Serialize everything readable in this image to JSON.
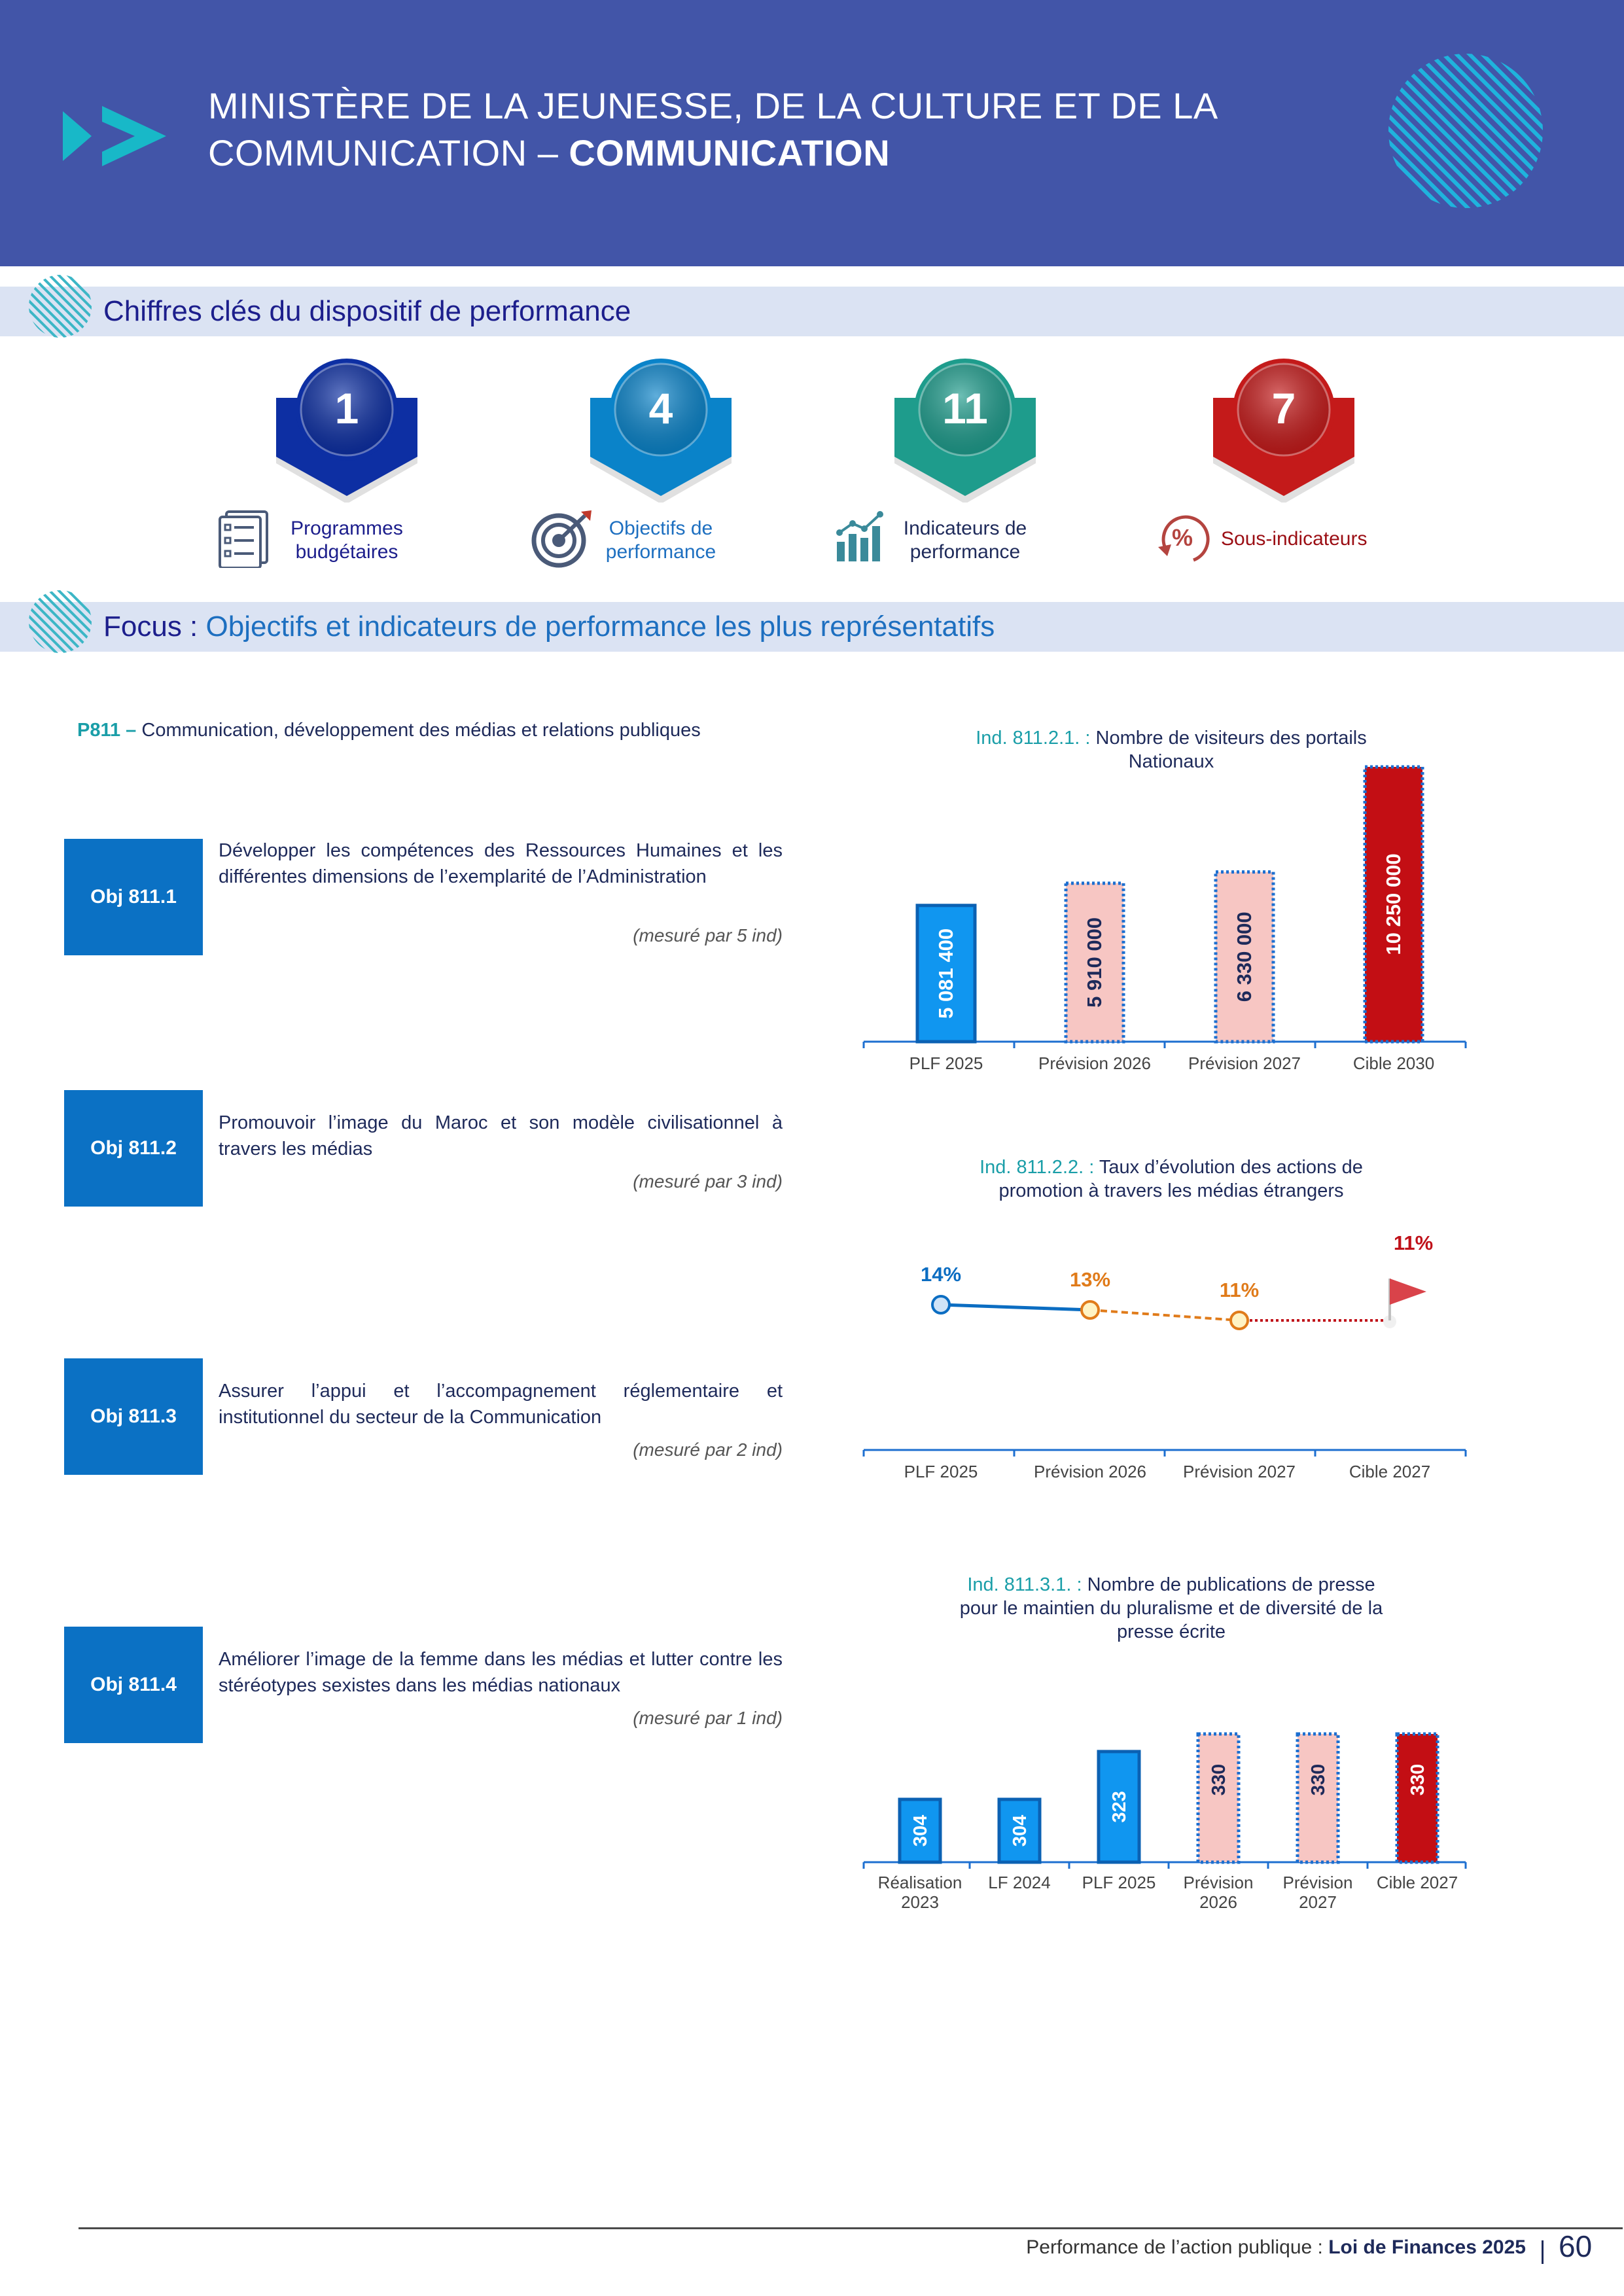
{
  "header": {
    "title_line1": "MINISTÈRE DE LA JEUNESSE, DE LA CULTURE ET DE LA",
    "title_line2_light": "COMMUNICATION – ",
    "title_line2_bold": "COMMUNICATION"
  },
  "section1": {
    "title": "Chiffres clés du dispositif de performance"
  },
  "key_figures": [
    {
      "value": "1",
      "label_line1": "Programmes",
      "label_line2": "budgétaires",
      "color": "#0d2fa3",
      "icon": "documents-icon"
    },
    {
      "value": "4",
      "label_line1": "Objectifs de",
      "label_line2": "performance",
      "color": "#0a83c9",
      "icon": "target-icon"
    },
    {
      "value": "11",
      "label_line1": "Indicateurs de",
      "label_line2": "performance",
      "color": "#1e9c8c",
      "icon": "bar-chart-icon"
    },
    {
      "value": "7",
      "label_line1": "Sous-indicateurs",
      "label_line2": "",
      "color": "#c41a1a",
      "icon": "percent-cycle-icon"
    }
  ],
  "section2": {
    "prefix": "Focus : ",
    "title": "Objectifs et indicateurs de performance les plus représentatifs"
  },
  "program": {
    "code": "P811 – ",
    "name": "Communication, développement des médias et relations publiques"
  },
  "objectives": [
    {
      "code": "Obj 811.1",
      "text": "Développer les compétences des Ressources Humaines et les différentes dimensions de l’exemplarité de l’Administration",
      "measure": "(mesuré par 5 ind)"
    },
    {
      "code": "Obj 811.2",
      "text": "Promouvoir l’image du Maroc et son modèle civilisationnel à travers les médias",
      "measure": "(mesuré par 3 ind)"
    },
    {
      "code": "Obj 811.3",
      "text": "Assurer l’appui et l’accompagnement réglementaire et institutionnel du secteur de la Communication",
      "measure": "(mesuré par 2 ind)"
    },
    {
      "code": "Obj 811.4",
      "text": "Améliorer l’image de la femme dans les médias et lutter contre les stéréotypes sexistes dans les médias nationaux",
      "measure": "(mesuré par 1 ind)"
    }
  ],
  "chart_data": [
    {
      "type": "bar",
      "code": "Ind. 811.2.1. : ",
      "title_line1": "Nombre de visiteurs des portails",
      "title_line2": "Nationaux",
      "categories": [
        "PLF 2025",
        "Prévision 2026",
        "Prévision 2027",
        "Cible 2030"
      ],
      "values": [
        5081400,
        5910000,
        6330000,
        10250000
      ],
      "labels": [
        "5 081 400",
        "5 910 000",
        "6 330 000",
        "10 250 000"
      ],
      "styles": [
        "actual",
        "forecast",
        "forecast",
        "target"
      ]
    },
    {
      "type": "line",
      "code": "Ind. 811.2.2. : ",
      "title_line1": "Taux d’évolution des actions de",
      "title_line2": "promotion à travers les médias étrangers",
      "categories": [
        "PLF 2025",
        "Prévision 2026",
        "Prévision 2027",
        "Cible 2027"
      ],
      "values": [
        14,
        13,
        11,
        11
      ],
      "labels": [
        "14%",
        "13%",
        "11%",
        "11%"
      ],
      "unit": "%"
    },
    {
      "type": "bar",
      "code": "Ind. 811.3.1. : ",
      "title_line1": "Nombre de publications de presse",
      "title_line2": "pour le maintien du pluralisme et de diversité de la",
      "title_line3": "presse écrite",
      "categories": [
        [
          "Réalisation",
          "2023"
        ],
        [
          "LF 2024",
          ""
        ],
        [
          "PLF 2025",
          ""
        ],
        [
          "Prévision",
          "2026"
        ],
        [
          "Prévision",
          "2027"
        ],
        [
          "Cible 2027",
          ""
        ]
      ],
      "values": [
        304,
        304,
        323,
        330,
        330,
        330
      ],
      "labels": [
        "304",
        "304",
        "323",
        "330",
        "330",
        "330"
      ],
      "styles": [
        "actual",
        "actual",
        "actual",
        "forecast",
        "forecast",
        "target"
      ]
    }
  ],
  "colors": {
    "actual": "#1096f0",
    "actual_border": "#0b61b3",
    "forecast": "#f7c6c3",
    "forecast_border": "#1d6fd0",
    "target": "#c30e14",
    "target_border": "#1d6fd0",
    "line_blue": "#0b6dc2",
    "line_orange": "#e07b1a",
    "line_red": "#c0121a"
  },
  "footer": {
    "text": "Performance de l’action publique : ",
    "bold": "Loi de Finances 2025",
    "page": "60"
  }
}
